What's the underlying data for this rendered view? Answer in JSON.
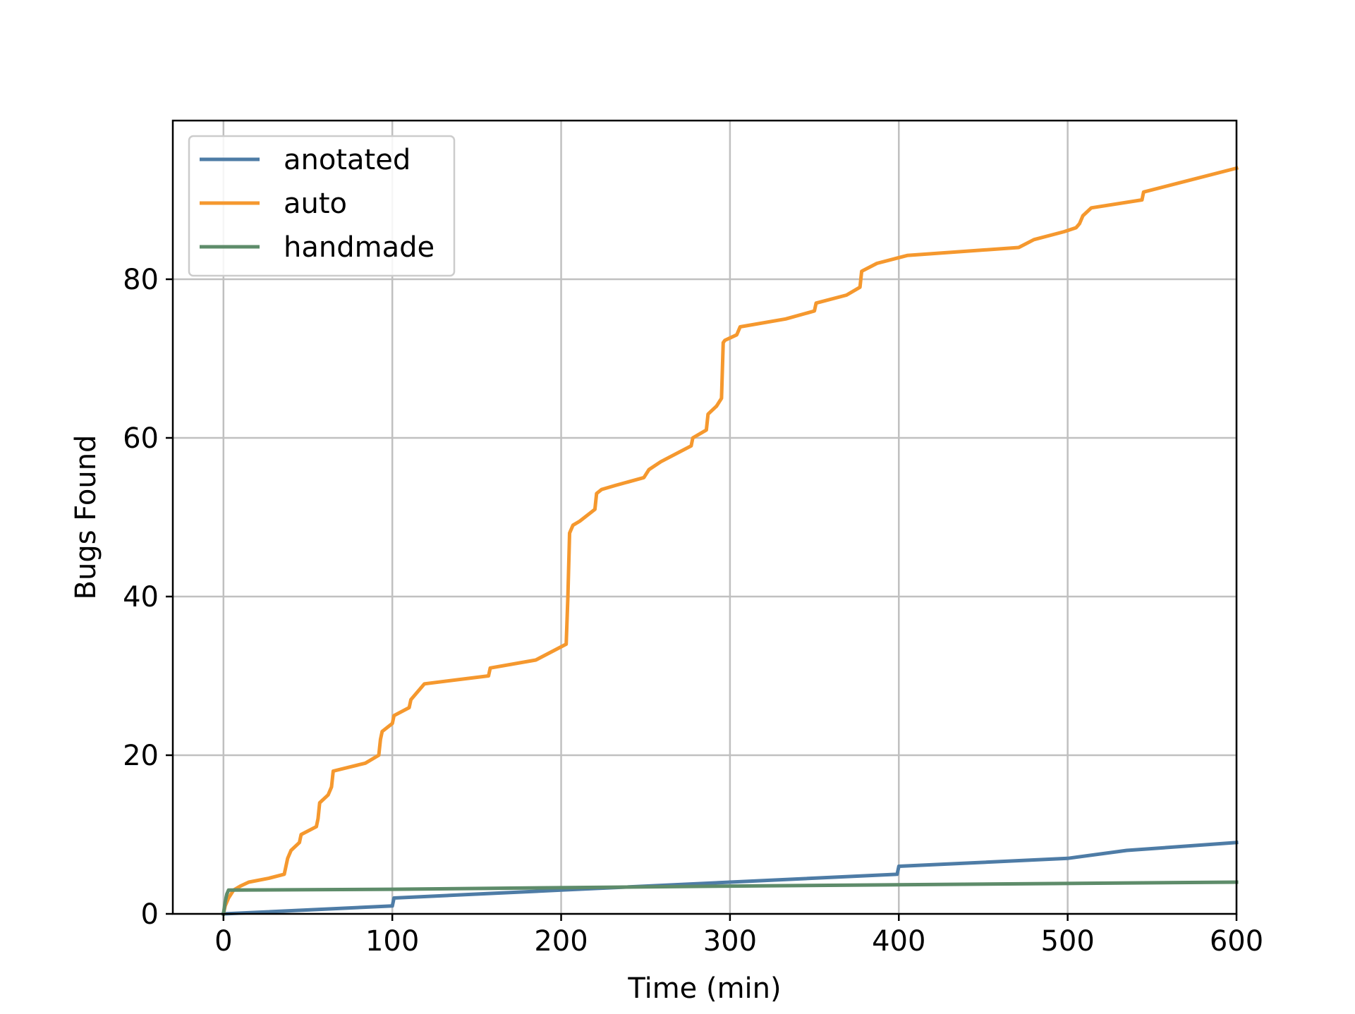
{
  "chart_data": {
    "type": "line",
    "title": "",
    "xlabel": "Time (min)",
    "ylabel": "Bugs Found",
    "xlim": [
      -30,
      600
    ],
    "ylim": [
      0,
      100
    ],
    "x_ticks": [
      0,
      100,
      200,
      300,
      400,
      500,
      600
    ],
    "y_ticks": [
      0,
      20,
      40,
      60,
      80
    ],
    "grid": true,
    "legend_position": "top-left",
    "series": [
      {
        "name": "anotated",
        "color": "#4e7ca6",
        "x": [
          0,
          100,
          101,
          200,
          300,
          399,
          400,
          500,
          535,
          600
        ],
        "y": [
          0,
          1,
          2,
          3,
          4,
          5,
          6,
          7,
          8,
          9
        ]
      },
      {
        "name": "auto",
        "color": "#f5982e",
        "x": [
          0,
          0.5,
          1,
          3,
          6,
          10,
          15,
          27,
          36,
          37,
          38,
          40,
          45,
          46,
          55,
          56,
          57,
          62,
          64,
          65,
          84,
          92,
          93,
          94,
          100,
          101,
          110,
          111,
          115,
          119,
          157,
          158,
          185,
          203,
          204,
          205,
          207,
          211,
          214,
          220,
          221,
          224,
          232,
          249,
          252,
          259,
          277,
          278,
          286,
          287,
          292,
          295,
          296,
          297,
          304,
          306,
          333,
          350,
          351,
          369,
          377,
          378,
          387,
          405,
          471,
          480,
          498,
          505,
          507,
          509,
          514,
          544,
          545,
          600
        ],
        "y": [
          0,
          0.5,
          1,
          2,
          3,
          3.5,
          4,
          4.5,
          5,
          6,
          7,
          8,
          9,
          10,
          11,
          12,
          14,
          15,
          16,
          18,
          19,
          20,
          22,
          23,
          24,
          25,
          26,
          27,
          28,
          29,
          30,
          31,
          32,
          34,
          40,
          48,
          49,
          49.5,
          50,
          51,
          53,
          53.5,
          54,
          55,
          56,
          57,
          59,
          60,
          61,
          63,
          64,
          65,
          72,
          72.3,
          73,
          74,
          75,
          76,
          77,
          78,
          79,
          81,
          82,
          83,
          84,
          85,
          86,
          86.5,
          87,
          88,
          89,
          90,
          91,
          94
        ]
      },
      {
        "name": "handmade",
        "color": "#5e8c6a",
        "x": [
          0,
          1,
          2,
          3,
          100,
          300,
          600
        ],
        "y": [
          0,
          1.5,
          2.5,
          3,
          3.1,
          3.5,
          4
        ]
      }
    ]
  }
}
